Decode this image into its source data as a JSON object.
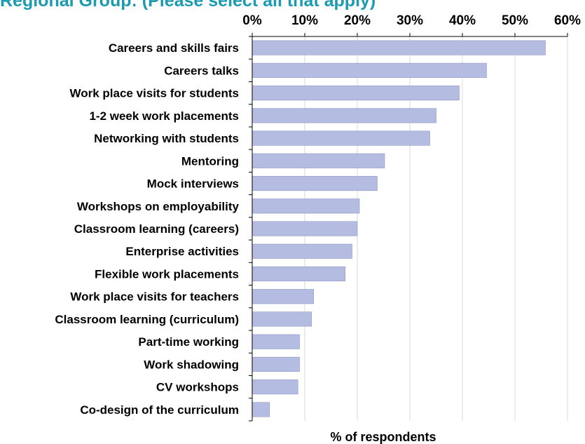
{
  "chart_data": {
    "type": "bar",
    "orientation": "horizontal",
    "title": "Regional Group: (Please select all that apply)",
    "xlabel": "% of respondents",
    "ylabel": "",
    "xlim": [
      0,
      60
    ],
    "ticks": [
      "0%",
      "10%",
      "20%",
      "30%",
      "40%",
      "50%",
      "60%"
    ],
    "tick_values": [
      0,
      10,
      20,
      30,
      40,
      50,
      60
    ],
    "axis_position": "top",
    "grid": true,
    "categories": [
      "Careers and skills fairs",
      "Careers talks",
      "Work place visits for students",
      "1-2 week work placements",
      "Networking with students",
      "Mentoring",
      "Mock interviews",
      "Workshops on employability",
      "Classroom learning (careers)",
      "Enterprise activities",
      "Flexible work placements",
      "Work place visits for teachers",
      "Classroom learning (curriculum)",
      "Part-time working",
      "Work shadowing",
      "CV workshops",
      "Co-design of the curriculum"
    ],
    "values": [
      55.8,
      44.6,
      39.4,
      35.0,
      33.8,
      25.2,
      23.8,
      20.4,
      20.0,
      19.0,
      17.7,
      11.7,
      11.3,
      9.0,
      9.0,
      8.7,
      3.3
    ],
    "bar_color": "#b5bce1",
    "bar_border_color": "#8f98c9"
  }
}
